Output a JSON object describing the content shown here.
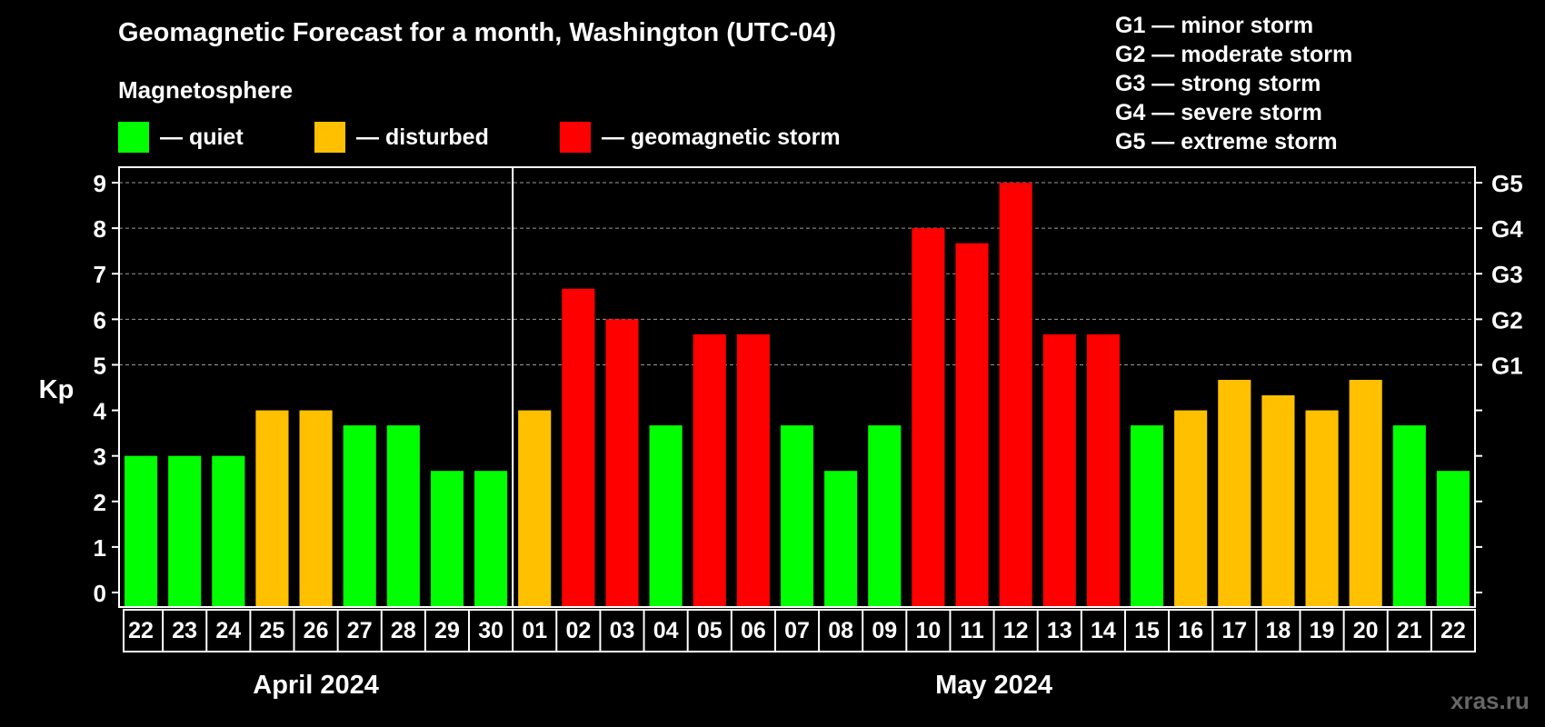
{
  "title": "Geomagnetic Forecast for a month, Washington (UTC-04)",
  "legend": {
    "title": "Magnetosphere",
    "items": [
      {
        "label": "— quiet",
        "color": "#00ff00"
      },
      {
        "label": "— disturbed",
        "color": "#ffc000"
      },
      {
        "label": "— geomagnetic storm",
        "color": "#ff0000"
      }
    ]
  },
  "g_scale": [
    "G1 — minor storm",
    "G2 — moderate storm",
    "G3 — strong storm",
    "G4 — severe storm",
    "G5 — extreme storm"
  ],
  "watermark": "xras.ru",
  "chart_data": {
    "type": "bar",
    "ylabel": "Kp",
    "ylim": [
      0,
      9
    ],
    "yticks": [
      "0",
      "1",
      "2",
      "3",
      "4",
      "5",
      "6",
      "7",
      "8",
      "9"
    ],
    "right_axis_labels": [
      {
        "value": 5,
        "label": "G1"
      },
      {
        "value": 6,
        "label": "G2"
      },
      {
        "value": 7,
        "label": "G3"
      },
      {
        "value": 8,
        "label": "G4"
      },
      {
        "value": 9,
        "label": "G5"
      }
    ],
    "grid": "dashed horizontal at 5, 6, 7, 8, 9",
    "months": [
      {
        "label": "April 2024",
        "count": 9
      },
      {
        "label": "May 2024",
        "count": 22
      }
    ],
    "categories": [
      "22",
      "23",
      "24",
      "25",
      "26",
      "27",
      "28",
      "29",
      "30",
      "01",
      "02",
      "03",
      "04",
      "05",
      "06",
      "07",
      "08",
      "09",
      "10",
      "11",
      "12",
      "13",
      "14",
      "15",
      "16",
      "17",
      "18",
      "19",
      "20",
      "21",
      "22"
    ],
    "values": [
      3,
      3,
      3,
      4,
      4,
      3.67,
      3.67,
      2.67,
      2.67,
      4,
      6.67,
      6,
      3.67,
      5.67,
      5.67,
      3.67,
      2.67,
      3.67,
      8,
      7.67,
      9,
      5.67,
      5.67,
      3.67,
      4,
      4.67,
      4.33,
      4,
      4.67,
      3.67,
      2.67
    ],
    "levels": [
      "quiet",
      "quiet",
      "quiet",
      "disturbed",
      "disturbed",
      "quiet",
      "quiet",
      "quiet",
      "quiet",
      "disturbed",
      "storm",
      "storm",
      "quiet",
      "storm",
      "storm",
      "quiet",
      "quiet",
      "quiet",
      "storm",
      "storm",
      "storm",
      "storm",
      "storm",
      "quiet",
      "disturbed",
      "disturbed",
      "disturbed",
      "disturbed",
      "disturbed",
      "quiet",
      "quiet"
    ],
    "level_colors": {
      "quiet": "#00ff00",
      "disturbed": "#ffc000",
      "storm": "#ff0000"
    }
  }
}
